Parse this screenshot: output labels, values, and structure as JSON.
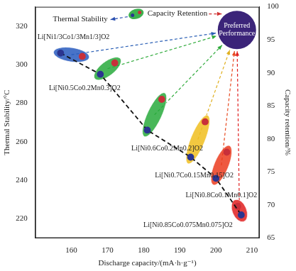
{
  "chart_data": {
    "type": "scatter",
    "x_label": "Discharge capacity/(mA·h·g⁻¹)",
    "y_label": "Thermal Stability/°C",
    "y2_label": "Capacity retention/%",
    "xlim": [
      150,
      212
    ],
    "xticks": [
      160,
      170,
      180,
      190,
      200,
      210
    ],
    "ylim": [
      210,
      330
    ],
    "yticks": [
      220,
      240,
      260,
      280,
      300,
      320
    ],
    "y2lim": [
      65,
      100
    ],
    "y2ticks": [
      65,
      70,
      75,
      80,
      85,
      90,
      95,
      100
    ],
    "grid": false,
    "materials": [
      "Li[Ni1/3Co1/3Mn1/3]O2",
      "Li[Ni0.5Co0.2Mn0.3]O2",
      "Li[Ni0.6Co0.2Mn0.2]O2",
      "Li[Ni0.7Co0.15Mn0.15]O2",
      "Li[Ni0.8Co0.1Mn0.1]O2",
      "Li[Ni0.85Co0.075Mn0.075]O2"
    ],
    "series": [
      {
        "name": "Thermal Stability",
        "color": "#2b3590",
        "marker": "circle",
        "line_style": "dashed",
        "x": [
          157,
          168,
          181,
          193,
          200,
          207
        ],
        "values": [
          306,
          295,
          266,
          252,
          241,
          222
        ]
      },
      {
        "name": "Capacity Retention",
        "color": "#c8303a",
        "marker": "circle",
        "axis": "y2",
        "x": [
          163,
          172,
          185,
          197,
          203,
          206
        ],
        "values": [
          92.5,
          91.5,
          86,
          82.6,
          78,
          69.8
        ]
      }
    ],
    "annotations": [
      "Preferred Performance"
    ]
  }
}
